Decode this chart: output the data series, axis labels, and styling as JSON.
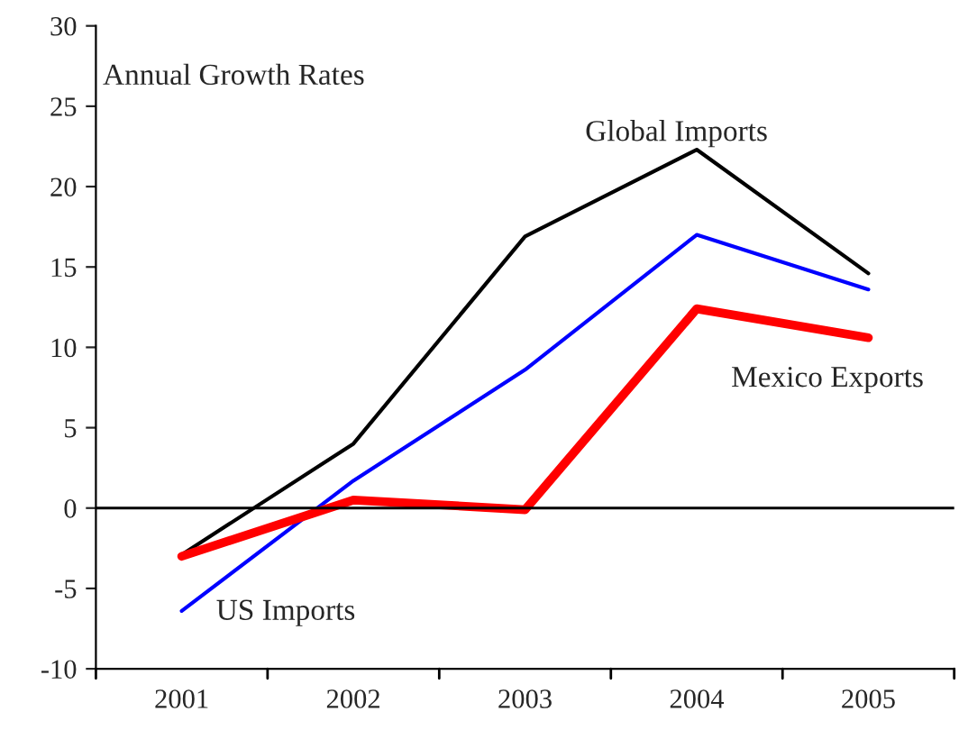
{
  "chart_data": {
    "type": "line",
    "title": "Annual Growth Rates",
    "categories": [
      "2001",
      "2002",
      "2003",
      "2004",
      "2005"
    ],
    "series": [
      {
        "name": "Global Imports",
        "color": "#000000",
        "values": [
          -2.9,
          4.0,
          16.9,
          22.3,
          14.6
        ]
      },
      {
        "name": "US Imports",
        "color": "#0000ff",
        "values": [
          -6.4,
          1.7,
          8.6,
          17.0,
          13.6
        ]
      },
      {
        "name": "Mexico Exports",
        "color": "#ff0000",
        "values": [
          -3.0,
          0.5,
          -0.1,
          12.4,
          10.6
        ]
      }
    ],
    "ylim": [
      -10,
      30
    ],
    "yticks": [
      -10,
      -5,
      0,
      5,
      10,
      15,
      20,
      25,
      30
    ],
    "ref_lines": [
      {
        "axis": "y",
        "value": 0,
        "color": "#000000"
      }
    ],
    "grid": false,
    "legend": false
  }
}
